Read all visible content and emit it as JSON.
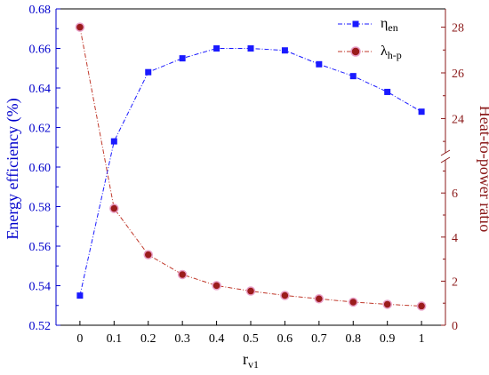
{
  "chart_data": {
    "type": "line",
    "x": [
      0,
      0.1,
      0.2,
      0.3,
      0.4,
      0.5,
      0.6,
      0.7,
      0.8,
      0.9,
      1
    ],
    "x_tick_labels": [
      "0",
      "0.1",
      "0.2",
      "0.3",
      "0.4",
      "0.5",
      "0.6",
      "0.7",
      "0.8",
      "0.9",
      "1"
    ],
    "xlim": [
      -0.07,
      1.07
    ],
    "xlabel_main": "r",
    "xlabel_sub": "v1",
    "y_left": {
      "label": "Energy efficiency (%)",
      "ylim": [
        0.52,
        0.68
      ],
      "ticks": [
        "0.52",
        "0.54",
        "0.56",
        "0.58",
        "0.60",
        "0.62",
        "0.64",
        "0.66",
        "0.68"
      ],
      "color": "#0000cc"
    },
    "y_right": {
      "label": "Heat-to-power ratio",
      "color": "#8b1a1a",
      "broken": true,
      "lower_range": [
        0,
        7.5
      ],
      "upper_range": [
        22.5,
        28.8
      ],
      "ticks_lower": [
        "0",
        "2",
        "4",
        "6"
      ],
      "ticks_upper": [
        "24",
        "26",
        "28"
      ]
    },
    "series": [
      {
        "name_main": "η",
        "name_sub": "en",
        "axis": "left",
        "marker": "square",
        "color": "#1a1aff",
        "values": [
          0.535,
          0.613,
          0.648,
          0.655,
          0.66,
          0.66,
          0.659,
          0.652,
          0.646,
          0.638,
          0.628
        ]
      },
      {
        "name_main": "λ",
        "name_sub": "h-p",
        "axis": "right",
        "marker": "circle",
        "color": "#c0392b",
        "values": [
          28.0,
          5.3,
          3.2,
          2.3,
          1.8,
          1.55,
          1.35,
          1.2,
          1.05,
          0.95,
          0.87
        ]
      }
    ],
    "legend_position": "top-right",
    "grid": false
  }
}
